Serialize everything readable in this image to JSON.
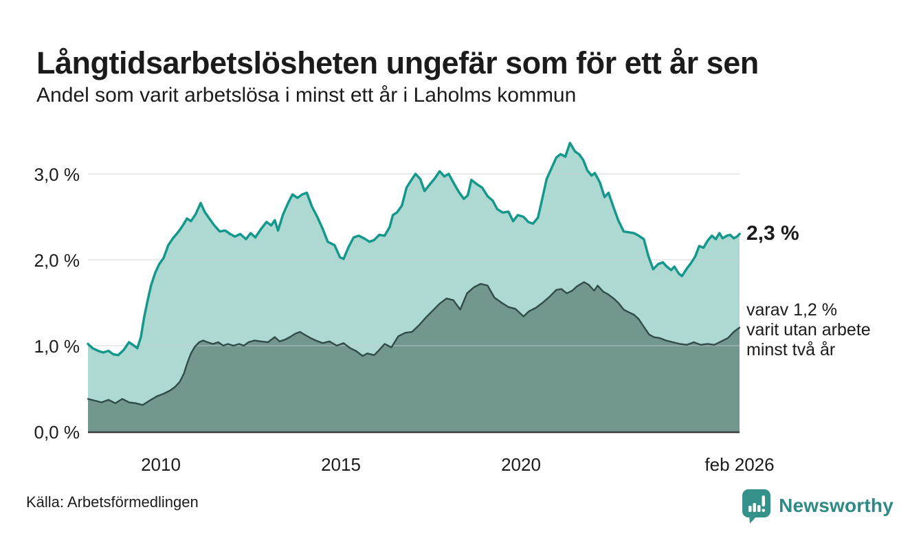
{
  "header": {
    "title": "Långtidsarbetslösheten ungefär som för ett år sen",
    "subtitle": "Andel som varit arbetslösa i minst ett år i Laholms kommun"
  },
  "annotations": {
    "total_end_label": "2,3 %",
    "two_year_lines": [
      "varav 1,2 %",
      "varit utan arbete",
      "minst två år"
    ]
  },
  "footer": {
    "source": "Källa: Arbetsförmedlingen",
    "brand": "Newsworthy"
  },
  "colors": {
    "total_line": "#13988b",
    "total_fill": "#aed8d2",
    "two_year_line": "#304c47",
    "two_year_fill": "#72978f",
    "gridline": "#c6ced3",
    "axis": "#3a3a3a",
    "brand_teal": "#35928b"
  },
  "chart_data": {
    "type": "area",
    "title": "Långtidsarbetslösheten ungefär som för ett år sen",
    "subtitle": "Andel som varit arbetslösa i minst ett år i Laholms kommun",
    "x_range": [
      2007.98,
      2026.08
    ],
    "ylim": [
      0,
      3.45
    ],
    "grid": true,
    "x_axis": {
      "ticks": [
        {
          "label": "2010",
          "year": 2010
        },
        {
          "label": "2015",
          "year": 2015
        },
        {
          "label": "2020",
          "year": 2020
        },
        {
          "label": "feb 2026",
          "year": 2026.08
        }
      ]
    },
    "y_axis": {
      "ticks": [
        {
          "label": "0,0 %",
          "value": 0
        },
        {
          "label": "1,0 %",
          "value": 1
        },
        {
          "label": "2,0 %",
          "value": 2
        },
        {
          "label": "3,0 %",
          "value": 3
        }
      ]
    },
    "series": [
      {
        "key": "total",
        "name": "Andel arbetslösa minst ett år",
        "end_label": "2,3 %",
        "end_value": 2.3,
        "color": "#13988b",
        "fill": "#aed8d2",
        "stroke_width": 3.5,
        "points": [
          [
            2007.98,
            1.02
          ],
          [
            2008.11,
            0.97
          ],
          [
            2008.26,
            0.94
          ],
          [
            2008.4,
            0.92
          ],
          [
            2008.55,
            0.94
          ],
          [
            2008.68,
            0.9
          ],
          [
            2008.82,
            0.89
          ],
          [
            2008.97,
            0.95
          ],
          [
            2009.12,
            1.04
          ],
          [
            2009.26,
            1.0
          ],
          [
            2009.35,
            0.97
          ],
          [
            2009.45,
            1.1
          ],
          [
            2009.54,
            1.33
          ],
          [
            2009.64,
            1.53
          ],
          [
            2009.73,
            1.7
          ],
          [
            2009.85,
            1.85
          ],
          [
            2009.96,
            1.95
          ],
          [
            2010.08,
            2.02
          ],
          [
            2010.21,
            2.17
          ],
          [
            2010.34,
            2.25
          ],
          [
            2010.5,
            2.33
          ],
          [
            2010.63,
            2.41
          ],
          [
            2010.73,
            2.48
          ],
          [
            2010.84,
            2.45
          ],
          [
            2010.97,
            2.53
          ],
          [
            2011.11,
            2.66
          ],
          [
            2011.22,
            2.56
          ],
          [
            2011.35,
            2.48
          ],
          [
            2011.49,
            2.4
          ],
          [
            2011.64,
            2.33
          ],
          [
            2011.79,
            2.34
          ],
          [
            2011.93,
            2.3
          ],
          [
            2012.06,
            2.27
          ],
          [
            2012.21,
            2.3
          ],
          [
            2012.37,
            2.24
          ],
          [
            2012.5,
            2.31
          ],
          [
            2012.63,
            2.26
          ],
          [
            2012.79,
            2.36
          ],
          [
            2012.94,
            2.44
          ],
          [
            2013.07,
            2.4
          ],
          [
            2013.17,
            2.46
          ],
          [
            2013.26,
            2.34
          ],
          [
            2013.4,
            2.53
          ],
          [
            2013.55,
            2.67
          ],
          [
            2013.66,
            2.76
          ],
          [
            2013.8,
            2.72
          ],
          [
            2013.93,
            2.76
          ],
          [
            2014.06,
            2.78
          ],
          [
            2014.2,
            2.62
          ],
          [
            2014.35,
            2.5
          ],
          [
            2014.5,
            2.36
          ],
          [
            2014.64,
            2.21
          ],
          [
            2014.83,
            2.17
          ],
          [
            2014.98,
            2.03
          ],
          [
            2015.08,
            2.01
          ],
          [
            2015.21,
            2.14
          ],
          [
            2015.36,
            2.26
          ],
          [
            2015.5,
            2.28
          ],
          [
            2015.65,
            2.25
          ],
          [
            2015.8,
            2.21
          ],
          [
            2015.93,
            2.23
          ],
          [
            2016.07,
            2.29
          ],
          [
            2016.22,
            2.28
          ],
          [
            2016.36,
            2.38
          ],
          [
            2016.45,
            2.52
          ],
          [
            2016.56,
            2.55
          ],
          [
            2016.7,
            2.63
          ],
          [
            2016.83,
            2.84
          ],
          [
            2016.95,
            2.92
          ],
          [
            2017.08,
            3.0
          ],
          [
            2017.21,
            2.94
          ],
          [
            2017.33,
            2.8
          ],
          [
            2017.46,
            2.87
          ],
          [
            2017.6,
            2.94
          ],
          [
            2017.75,
            3.03
          ],
          [
            2017.88,
            2.97
          ],
          [
            2018.0,
            3.0
          ],
          [
            2018.13,
            2.9
          ],
          [
            2018.28,
            2.79
          ],
          [
            2018.42,
            2.71
          ],
          [
            2018.53,
            2.75
          ],
          [
            2018.63,
            2.93
          ],
          [
            2018.78,
            2.88
          ],
          [
            2018.93,
            2.84
          ],
          [
            2019.08,
            2.74
          ],
          [
            2019.22,
            2.69
          ],
          [
            2019.35,
            2.59
          ],
          [
            2019.5,
            2.55
          ],
          [
            2019.66,
            2.56
          ],
          [
            2019.79,
            2.45
          ],
          [
            2019.92,
            2.52
          ],
          [
            2020.08,
            2.5
          ],
          [
            2020.21,
            2.44
          ],
          [
            2020.34,
            2.42
          ],
          [
            2020.48,
            2.49
          ],
          [
            2020.61,
            2.73
          ],
          [
            2020.72,
            2.94
          ],
          [
            2020.86,
            3.07
          ],
          [
            2020.99,
            3.19
          ],
          [
            2021.11,
            3.23
          ],
          [
            2021.24,
            3.2
          ],
          [
            2021.37,
            3.36
          ],
          [
            2021.51,
            3.26
          ],
          [
            2021.62,
            3.23
          ],
          [
            2021.74,
            3.16
          ],
          [
            2021.85,
            3.04
          ],
          [
            2021.97,
            2.98
          ],
          [
            2022.06,
            3.01
          ],
          [
            2022.2,
            2.9
          ],
          [
            2022.33,
            2.73
          ],
          [
            2022.44,
            2.78
          ],
          [
            2022.58,
            2.61
          ],
          [
            2022.71,
            2.46
          ],
          [
            2022.86,
            2.33
          ],
          [
            2023.0,
            2.32
          ],
          [
            2023.15,
            2.31
          ],
          [
            2023.28,
            2.28
          ],
          [
            2023.42,
            2.24
          ],
          [
            2023.55,
            2.04
          ],
          [
            2023.68,
            1.89
          ],
          [
            2023.82,
            1.95
          ],
          [
            2023.95,
            1.97
          ],
          [
            2024.06,
            1.92
          ],
          [
            2024.18,
            1.88
          ],
          [
            2024.27,
            1.92
          ],
          [
            2024.39,
            1.84
          ],
          [
            2024.48,
            1.81
          ],
          [
            2024.62,
            1.9
          ],
          [
            2024.73,
            1.96
          ],
          [
            2024.85,
            2.04
          ],
          [
            2024.96,
            2.16
          ],
          [
            2025.08,
            2.14
          ],
          [
            2025.19,
            2.22
          ],
          [
            2025.31,
            2.28
          ],
          [
            2025.42,
            2.24
          ],
          [
            2025.52,
            2.31
          ],
          [
            2025.61,
            2.25
          ],
          [
            2025.73,
            2.28
          ],
          [
            2025.82,
            2.29
          ],
          [
            2025.92,
            2.25
          ],
          [
            2026.01,
            2.27
          ],
          [
            2026.08,
            2.3
          ]
        ]
      },
      {
        "key": "two-year",
        "name": "varav utan arbete minst två år",
        "end_label": "varav 1,2 % varit utan arbete minst två år",
        "end_value": 1.2,
        "color": "#304c47",
        "fill": "#72978f",
        "stroke_width": 2.4,
        "points": [
          [
            2007.98,
            0.38
          ],
          [
            2008.17,
            0.36
          ],
          [
            2008.36,
            0.34
          ],
          [
            2008.55,
            0.37
          ],
          [
            2008.74,
            0.33
          ],
          [
            2008.93,
            0.38
          ],
          [
            2009.12,
            0.34
          ],
          [
            2009.31,
            0.33
          ],
          [
            2009.5,
            0.31
          ],
          [
            2009.69,
            0.36
          ],
          [
            2009.89,
            0.41
          ],
          [
            2010.08,
            0.44
          ],
          [
            2010.27,
            0.48
          ],
          [
            2010.4,
            0.52
          ],
          [
            2010.53,
            0.58
          ],
          [
            2010.65,
            0.68
          ],
          [
            2010.74,
            0.8
          ],
          [
            2010.84,
            0.91
          ],
          [
            2010.95,
            0.99
          ],
          [
            2011.07,
            1.04
          ],
          [
            2011.18,
            1.06
          ],
          [
            2011.3,
            1.04
          ],
          [
            2011.45,
            1.02
          ],
          [
            2011.6,
            1.04
          ],
          [
            2011.74,
            1.0
          ],
          [
            2011.87,
            1.02
          ],
          [
            2012.02,
            1.0
          ],
          [
            2012.18,
            1.02
          ],
          [
            2012.31,
            1.0
          ],
          [
            2012.44,
            1.04
          ],
          [
            2012.6,
            1.06
          ],
          [
            2012.79,
            1.05
          ],
          [
            2012.98,
            1.04
          ],
          [
            2013.17,
            1.1
          ],
          [
            2013.3,
            1.05
          ],
          [
            2013.45,
            1.07
          ],
          [
            2013.59,
            1.1
          ],
          [
            2013.74,
            1.14
          ],
          [
            2013.87,
            1.16
          ],
          [
            2014.03,
            1.12
          ],
          [
            2014.16,
            1.09
          ],
          [
            2014.31,
            1.06
          ],
          [
            2014.5,
            1.03
          ],
          [
            2014.69,
            1.05
          ],
          [
            2014.89,
            1.0
          ],
          [
            2015.08,
            1.03
          ],
          [
            2015.27,
            0.97
          ],
          [
            2015.42,
            0.94
          ],
          [
            2015.61,
            0.88
          ],
          [
            2015.74,
            0.91
          ],
          [
            2015.93,
            0.89
          ],
          [
            2016.07,
            0.95
          ],
          [
            2016.22,
            1.02
          ],
          [
            2016.41,
            0.98
          ],
          [
            2016.6,
            1.11
          ],
          [
            2016.79,
            1.15
          ],
          [
            2016.98,
            1.16
          ],
          [
            2017.18,
            1.24
          ],
          [
            2017.37,
            1.33
          ],
          [
            2017.56,
            1.41
          ],
          [
            2017.75,
            1.49
          ],
          [
            2017.94,
            1.55
          ],
          [
            2018.13,
            1.53
          ],
          [
            2018.32,
            1.42
          ],
          [
            2018.51,
            1.61
          ],
          [
            2018.7,
            1.68
          ],
          [
            2018.89,
            1.72
          ],
          [
            2019.08,
            1.7
          ],
          [
            2019.27,
            1.56
          ],
          [
            2019.47,
            1.5
          ],
          [
            2019.66,
            1.45
          ],
          [
            2019.85,
            1.43
          ],
          [
            2020.08,
            1.34
          ],
          [
            2020.23,
            1.4
          ],
          [
            2020.42,
            1.44
          ],
          [
            2020.61,
            1.5
          ],
          [
            2020.8,
            1.57
          ],
          [
            2020.99,
            1.65
          ],
          [
            2021.13,
            1.66
          ],
          [
            2021.28,
            1.61
          ],
          [
            2021.43,
            1.64
          ],
          [
            2021.56,
            1.69
          ],
          [
            2021.76,
            1.74
          ],
          [
            2021.89,
            1.71
          ],
          [
            2022.04,
            1.64
          ],
          [
            2022.14,
            1.7
          ],
          [
            2022.29,
            1.63
          ],
          [
            2022.42,
            1.6
          ],
          [
            2022.58,
            1.55
          ],
          [
            2022.71,
            1.5
          ],
          [
            2022.86,
            1.42
          ],
          [
            2023.0,
            1.39
          ],
          [
            2023.15,
            1.36
          ],
          [
            2023.28,
            1.31
          ],
          [
            2023.42,
            1.22
          ],
          [
            2023.57,
            1.13
          ],
          [
            2023.7,
            1.1
          ],
          [
            2023.85,
            1.09
          ],
          [
            2024.04,
            1.06
          ],
          [
            2024.23,
            1.04
          ],
          [
            2024.42,
            1.02
          ],
          [
            2024.62,
            1.01
          ],
          [
            2024.81,
            1.04
          ],
          [
            2025.0,
            1.01
          ],
          [
            2025.19,
            1.02
          ],
          [
            2025.38,
            1.01
          ],
          [
            2025.57,
            1.05
          ],
          [
            2025.76,
            1.09
          ],
          [
            2025.92,
            1.16
          ],
          [
            2026.01,
            1.19
          ],
          [
            2026.08,
            1.21
          ]
        ]
      }
    ]
  }
}
